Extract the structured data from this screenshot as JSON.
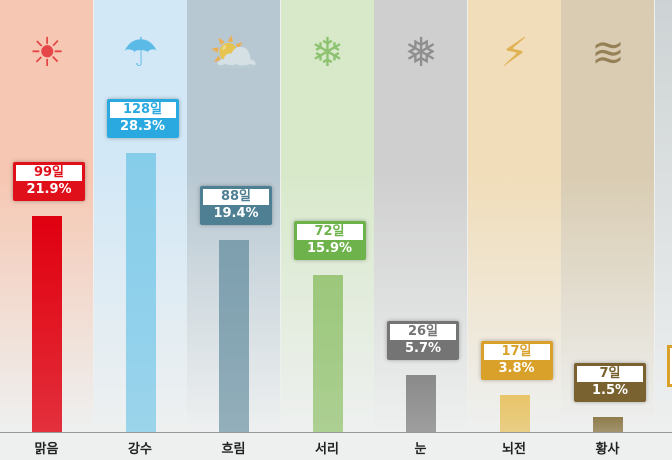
{
  "chart_data": {
    "type": "bar",
    "categories": [
      "맑음",
      "강수",
      "흐림",
      "서리",
      "눈",
      "뇌전",
      "황사"
    ],
    "values": [
      99,
      128,
      88,
      72,
      26,
      17,
      7
    ],
    "percents": [
      "21.9%",
      "28.3%",
      "19.4%",
      "15.9%",
      "5.7%",
      "3.8%",
      "1.5%"
    ],
    "day_labels": [
      "99일",
      "128일",
      "88일",
      "72일",
      "26일",
      "17일",
      "7일"
    ],
    "icons": [
      "sun-icon",
      "rain-cloud-icon",
      "cloud-sun-icon",
      "frost-icon",
      "snow-cloud-icon",
      "thunder-icon",
      "dust-icon"
    ],
    "bar_colors": [
      "#e00010",
      "#86cdea",
      "#7d9fae",
      "#9cc77b",
      "#8a8a8a",
      "#e8c56a",
      "#8f7c4c"
    ],
    "label_colors": [
      "#e0101a",
      "#2aa8e0",
      "#4f7f92",
      "#6db24a",
      "#747474",
      "#d9a12a",
      "#7a6230"
    ],
    "bg_colors": [
      "#f6c7b2",
      "#d3e8f6",
      "#b8c8d2",
      "#d8e9ca",
      "#cfcfcf",
      "#f1ddb9",
      "#d9ccb2"
    ],
    "ylim": [
      0,
      128
    ],
    "grid": false
  }
}
